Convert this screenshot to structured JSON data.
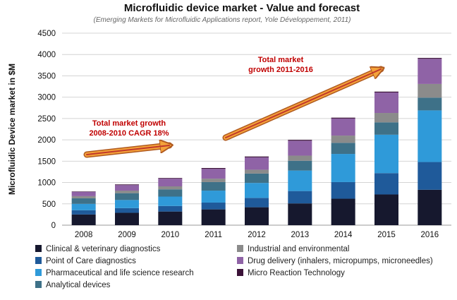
{
  "chart_data": {
    "type": "bar",
    "stacked": true,
    "title": "Microfluidic device market - Value and forecast",
    "subtitle": "(Emerging Markets for Microfluidic Applications report, Yole Développement, 2011)",
    "xlabel": "",
    "ylabel": "Microfluidic Device market in $M",
    "ylim": [
      0,
      4500
    ],
    "yticks": [
      0,
      500,
      1000,
      1500,
      2000,
      2500,
      3000,
      3500,
      4000,
      4500
    ],
    "grid": true,
    "categories": [
      "2008",
      "2009",
      "2010",
      "2011",
      "2012",
      "2013",
      "2014",
      "2015",
      "2016"
    ],
    "series": [
      {
        "name": "Clinical & veterinary diagnostics",
        "color": "#16182e",
        "values": [
          250,
          290,
          320,
          370,
          420,
          510,
          620,
          720,
          830
        ]
      },
      {
        "name": "Point of Care diagnostics",
        "color": "#1f5a9a",
        "values": [
          100,
          110,
          130,
          160,
          220,
          290,
          390,
          500,
          650
        ]
      },
      {
        "name": "Pharmaceutical and life science research",
        "color": "#2f9ad9",
        "values": [
          150,
          190,
          220,
          280,
          350,
          480,
          660,
          900,
          1210
        ]
      },
      {
        "name": "Analytical devices",
        "color": "#3e7188",
        "values": [
          130,
          160,
          170,
          200,
          220,
          230,
          260,
          290,
          300
        ]
      },
      {
        "name": "Industrial and environmental",
        "color": "#8b8b8b",
        "values": [
          50,
          60,
          70,
          80,
          90,
          120,
          170,
          220,
          320
        ]
      },
      {
        "name": "Drug delivery (inhalers, micropumps, microneedles)",
        "color": "#8f63a6",
        "values": [
          100,
          130,
          180,
          230,
          290,
          350,
          400,
          480,
          590
        ]
      },
      {
        "name": "Micro Reaction Technology",
        "color": "#3b1238",
        "values": [
          10,
          15,
          15,
          20,
          20,
          20,
          20,
          20,
          20
        ]
      }
    ],
    "annotations": [
      {
        "line1": "Total market growth",
        "line2": "2008-2010 CAGR 18%"
      },
      {
        "line1": "Total market",
        "line2": "growth 2011-2016"
      }
    ],
    "legend_position": "bottom"
  }
}
